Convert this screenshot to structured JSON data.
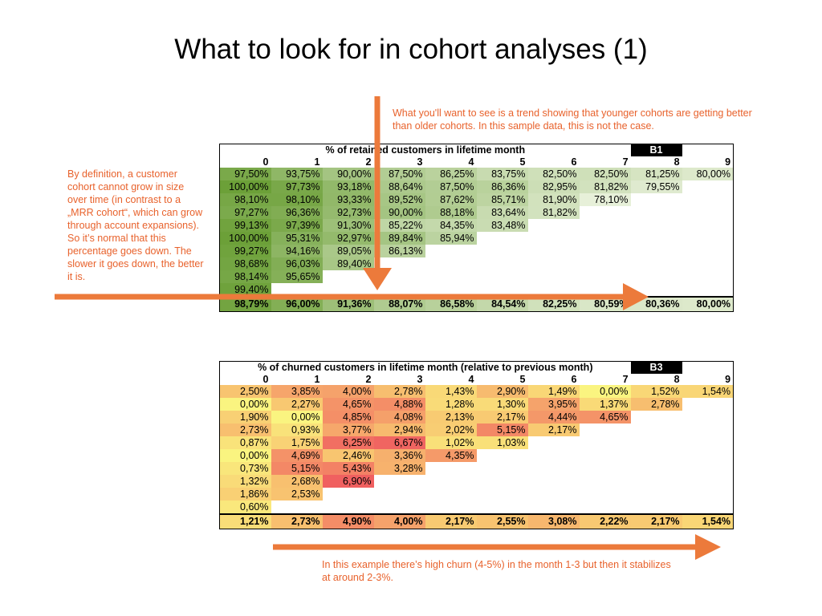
{
  "slide": {
    "title": "What to look for in cohort analyses (1)"
  },
  "annotations": {
    "left": "By definition, a customer cohort cannot grow in size over time (in contrast to a „MRR cohort“, which can grow through account expansions). So it’s normal that this percentage goes down. The slower it goes down, the better it is.",
    "top": "What you'll want to see is a trend showing that younger cohorts are getting better than older cohorts. In this sample data, this is not the case.",
    "bottom": "In this example there’s high churn (4-5%) in the month 1-3 but then it stabilizes at around 2-3%."
  },
  "colors": {
    "annotation": "#e8622c",
    "arrow": "#ec7a3b"
  },
  "tables": [
    {
      "id": "retained",
      "caption": "% of retained customers in lifetime month",
      "tag": "B1",
      "columns": [
        "0",
        "1",
        "2",
        "3",
        "4",
        "5",
        "6",
        "7",
        "8",
        "9"
      ],
      "rows": [
        [
          "97,50%",
          "93,75%",
          "90,00%",
          "87,50%",
          "86,25%",
          "83,75%",
          "82,50%",
          "82,50%",
          "81,25%",
          "80,00%"
        ],
        [
          "100,00%",
          "97,73%",
          "93,18%",
          "88,64%",
          "87,50%",
          "86,36%",
          "82,95%",
          "81,82%",
          "79,55%"
        ],
        [
          "98,10%",
          "98,10%",
          "93,33%",
          "89,52%",
          "87,62%",
          "85,71%",
          "81,90%",
          "78,10%"
        ],
        [
          "97,27%",
          "96,36%",
          "92,73%",
          "90,00%",
          "88,18%",
          "83,64%",
          "81,82%"
        ],
        [
          "99,13%",
          "97,39%",
          "91,30%",
          "85,22%",
          "84,35%",
          "83,48%"
        ],
        [
          "100,00%",
          "95,31%",
          "92,97%",
          "89,84%",
          "85,94%"
        ],
        [
          "99,27%",
          "94,16%",
          "89,05%",
          "86,13%"
        ],
        [
          "98,68%",
          "96,03%",
          "89,40%"
        ],
        [
          "98,14%",
          "95,65%"
        ],
        [
          "99,40%"
        ]
      ],
      "summary": [
        "98,79%",
        "96,00%",
        "91,36%",
        "88,07%",
        "86,58%",
        "84,54%",
        "82,25%",
        "80,59%",
        "80,36%",
        "80,00%"
      ]
    },
    {
      "id": "churned",
      "caption": "% of churned customers in lifetime month (relative to previous month)",
      "tag": "B3",
      "columns": [
        "0",
        "1",
        "2",
        "3",
        "4",
        "5",
        "6",
        "7",
        "8",
        "9"
      ],
      "rows": [
        [
          "2,50%",
          "3,85%",
          "4,00%",
          "2,78%",
          "1,43%",
          "2,90%",
          "1,49%",
          "0,00%",
          "1,52%",
          "1,54%"
        ],
        [
          "0,00%",
          "2,27%",
          "4,65%",
          "4,88%",
          "1,28%",
          "1,30%",
          "3,95%",
          "1,37%",
          "2,78%"
        ],
        [
          "1,90%",
          "0,00%",
          "4,85%",
          "4,08%",
          "2,13%",
          "2,17%",
          "4,44%",
          "4,65%"
        ],
        [
          "2,73%",
          "0,93%",
          "3,77%",
          "2,94%",
          "2,02%",
          "5,15%",
          "2,17%"
        ],
        [
          "0,87%",
          "1,75%",
          "6,25%",
          "6,67%",
          "1,02%",
          "1,03%"
        ],
        [
          "0,00%",
          "4,69%",
          "2,46%",
          "3,36%",
          "4,35%"
        ],
        [
          "0,73%",
          "5,15%",
          "5,43%",
          "3,28%"
        ],
        [
          "1,32%",
          "2,68%",
          "6,90%"
        ],
        [
          "1,86%",
          "2,53%"
        ],
        [
          "0,60%"
        ]
      ],
      "summary": [
        "1,21%",
        "2,73%",
        "4,90%",
        "4,00%",
        "2,17%",
        "2,55%",
        "3,08%",
        "2,22%",
        "2,17%",
        "1,54%"
      ]
    }
  ]
}
